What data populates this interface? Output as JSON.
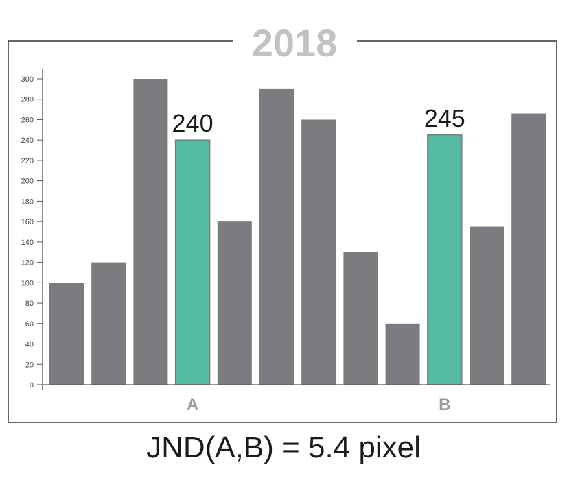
{
  "chart_data": {
    "type": "bar",
    "title": "2018",
    "values": [
      100,
      120,
      300,
      240,
      160,
      290,
      260,
      130,
      60,
      245,
      155,
      266
    ],
    "highlight_indices": [
      3,
      9
    ],
    "category_labels": [
      {
        "index": 3,
        "label": "A"
      },
      {
        "index": 9,
        "label": "B"
      }
    ],
    "data_labels": [
      {
        "index": 3,
        "label": "240"
      },
      {
        "index": 9,
        "label": "245"
      }
    ],
    "ylim": [
      0,
      300
    ],
    "yticks": [
      0,
      20,
      40,
      60,
      80,
      100,
      120,
      140,
      160,
      180,
      200,
      220,
      240,
      260,
      280,
      300
    ],
    "grid": false,
    "colors": {
      "bar": "#7b7c80",
      "highlight": "#55bba2"
    }
  },
  "caption": "JND(A,B) = 5.4 pixel"
}
